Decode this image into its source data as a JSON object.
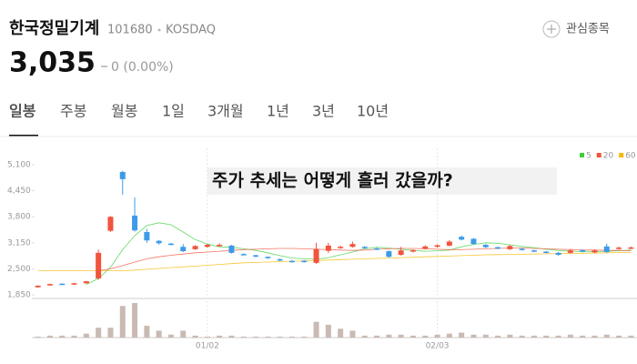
{
  "header": {
    "name": "한국정밀기계",
    "code": "101680",
    "market": "KOSDAQ",
    "watch": "관심종목",
    "price": "3,035",
    "change": "0 (0.00%)"
  },
  "tabs": [
    "일봉",
    "주봉",
    "월봉",
    "1일",
    "3개월",
    "1년",
    "3년",
    "10년"
  ],
  "selected_tab": 0,
  "chart_data": {
    "type": "candlestick",
    "annotation": "주가 추세는 어떻게 흘러 갔을까?",
    "categories": [
      null,
      null,
      null,
      null,
      null,
      null,
      null,
      null,
      null,
      null,
      null,
      null,
      null,
      null,
      "01/02",
      null,
      null,
      null,
      null,
      null,
      null,
      null,
      null,
      null,
      null,
      null,
      null,
      null,
      null,
      null,
      null,
      null,
      null,
      "02/03",
      null,
      null,
      null,
      null,
      null,
      null,
      null,
      null,
      null,
      null,
      null,
      null,
      null,
      null,
      null,
      null
    ],
    "open": [
      2040,
      2090,
      2130,
      2110,
      2140,
      2260,
      3450,
      4920,
      3830,
      3420,
      3200,
      3130,
      3050,
      2990,
      3050,
      3080,
      3080,
      2870,
      2840,
      2800,
      2740,
      2700,
      2700,
      2650,
      2950,
      3020,
      3050,
      3050,
      3010,
      2940,
      2850,
      2930,
      3000,
      3050,
      3080,
      3300,
      3250,
      3100,
      3040,
      2990,
      3000,
      2960,
      2930,
      2900,
      2900,
      2970,
      2910,
      3060,
      3000,
      3010
    ],
    "close": [
      2080,
      2120,
      2110,
      2140,
      2190,
      2900,
      3800,
      4740,
      3460,
      3210,
      3140,
      3110,
      2940,
      3070,
      3100,
      3100,
      2900,
      2860,
      2810,
      2770,
      2710,
      2670,
      2680,
      3000,
      3080,
      3050,
      3120,
      3020,
      2990,
      2800,
      2960,
      2970,
      3060,
      3090,
      3180,
      3230,
      3120,
      3040,
      3010,
      3070,
      2980,
      2940,
      2910,
      2850,
      2960,
      2930,
      2960,
      2920,
      3030,
      3035
    ],
    "high": [
      2090,
      2130,
      2140,
      2150,
      2200,
      2980,
      3820,
      4950,
      4280,
      3500,
      3220,
      3150,
      3120,
      3090,
      3120,
      3140,
      3100,
      2890,
      2850,
      2810,
      2760,
      2720,
      2720,
      3150,
      3150,
      3080,
      3180,
      3070,
      3030,
      2960,
      3050,
      2990,
      3090,
      3110,
      3220,
      3330,
      3270,
      3120,
      3060,
      3100,
      3020,
      2980,
      2950,
      2920,
      3000,
      2990,
      2990,
      3130,
      3060,
      3060
    ],
    "low": [
      2030,
      2080,
      2100,
      2100,
      2130,
      2230,
      3420,
      4350,
      3430,
      3150,
      3100,
      3090,
      2920,
      2970,
      3030,
      3060,
      2880,
      2840,
      2790,
      2750,
      2690,
      2650,
      2660,
      2620,
      2900,
      3000,
      3030,
      3000,
      2970,
      2780,
      2830,
      2910,
      2980,
      3030,
      3060,
      3210,
      3100,
      3020,
      2990,
      2970,
      2960,
      2920,
      2890,
      2830,
      2880,
      2910,
      2890,
      2900,
      2980,
      2990
    ],
    "volume": [
      1,
      2,
      2,
      2,
      4,
      10,
      10,
      32,
      35,
      12,
      7,
      3,
      7,
      2,
      1,
      2,
      2,
      1,
      1,
      1,
      1,
      1,
      1,
      16,
      13,
      9,
      7,
      2,
      2,
      3,
      3,
      2,
      2,
      3,
      4,
      5,
      3,
      3,
      2,
      3,
      2,
      2,
      2,
      2,
      3,
      2,
      2,
      3,
      2,
      2
    ],
    "up_color": "#f0543c",
    "down_color": "#3d9ae8",
    "volume_color": "#c9bab3",
    "ylim": [
      1760,
      5510
    ],
    "yticks": [
      {
        "value": 1850,
        "label": "1,850"
      },
      {
        "value": 2500,
        "label": "2,500"
      },
      {
        "value": 3150,
        "label": "3,150"
      },
      {
        "value": 3800,
        "label": "3,800"
      },
      {
        "value": 4450,
        "label": "4,450"
      },
      {
        "value": 5100,
        "label": "5,100"
      }
    ],
    "legend": "top-right",
    "series": [
      {
        "name": "5",
        "color": "#3ccf3c",
        "values": [
          null,
          null,
          null,
          null,
          2110,
          2260,
          2540,
          2980,
          3330,
          3580,
          3650,
          3600,
          3420,
          3230,
          3120,
          3050,
          3040,
          3000,
          2960,
          2900,
          2830,
          2770,
          2750,
          2740,
          2780,
          2850,
          2920,
          3000,
          3040,
          3020,
          2990,
          2960,
          2940,
          2950,
          2970,
          3050,
          3110,
          3150,
          3140,
          3100,
          3060,
          3030,
          2990,
          2960,
          2940,
          2930,
          2930,
          2940,
          2950,
          2970
        ]
      },
      {
        "name": "20",
        "color": "#f0543c",
        "values": [
          null,
          null,
          null,
          null,
          null,
          2450,
          2500,
          2580,
          2670,
          2750,
          2800,
          2840,
          2870,
          2900,
          2920,
          2940,
          2960,
          2980,
          2990,
          3000,
          3010,
          3010,
          3000,
          2990,
          2980,
          2970,
          2960,
          2970,
          2990,
          3000,
          3010,
          3010,
          3000,
          2990,
          2980,
          2980,
          2990,
          3000,
          3010,
          3020,
          3020,
          3010,
          3000,
          2990,
          2980,
          2970,
          2970,
          2960,
          2960,
          2950
        ]
      },
      {
        "name": "60",
        "color": "#f5b800",
        "values": [
          2450,
          2450,
          2450,
          2450,
          2450,
          2450,
          2450,
          2450,
          2470,
          2490,
          2510,
          2530,
          2550,
          2570,
          2590,
          2610,
          2630,
          2650,
          2660,
          2670,
          2680,
          2690,
          2700,
          2710,
          2720,
          2730,
          2740,
          2750,
          2760,
          2770,
          2780,
          2790,
          2800,
          2810,
          2820,
          2830,
          2840,
          2850,
          2855,
          2860,
          2865,
          2870,
          2875,
          2880,
          2885,
          2890,
          2895,
          2900,
          2905,
          2910
        ]
      }
    ]
  }
}
